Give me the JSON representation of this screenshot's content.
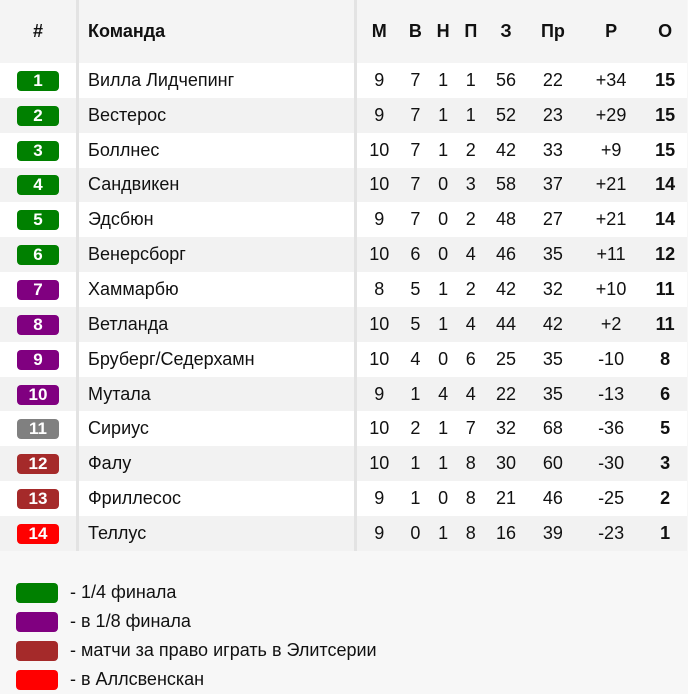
{
  "header": {
    "pos": "#",
    "team": "Команда",
    "cols": [
      "М",
      "В",
      "Н",
      "П",
      "З",
      "Пр",
      "Р",
      "О"
    ]
  },
  "colors": {
    "quarter": "#008000",
    "eighth": "#800080",
    "playoff": "#a52a2a",
    "relegation": "#ff0000",
    "neutral": "#808080"
  },
  "rows": [
    {
      "pos": "1",
      "zone": "quarter",
      "team": "Вилла Лидчепинг",
      "v": [
        "9",
        "7",
        "1",
        "1",
        "56",
        "22",
        "+34",
        "15"
      ]
    },
    {
      "pos": "2",
      "zone": "quarter",
      "team": "Вестерос",
      "v": [
        "9",
        "7",
        "1",
        "1",
        "52",
        "23",
        "+29",
        "15"
      ]
    },
    {
      "pos": "3",
      "zone": "quarter",
      "team": "Боллнес",
      "v": [
        "10",
        "7",
        "1",
        "2",
        "42",
        "33",
        "+9",
        "15"
      ]
    },
    {
      "pos": "4",
      "zone": "quarter",
      "team": "Сандвикен",
      "v": [
        "10",
        "7",
        "0",
        "3",
        "58",
        "37",
        "+21",
        "14"
      ]
    },
    {
      "pos": "5",
      "zone": "quarter",
      "team": "Эдсбюн",
      "v": [
        "9",
        "7",
        "0",
        "2",
        "48",
        "27",
        "+21",
        "14"
      ]
    },
    {
      "pos": "6",
      "zone": "quarter",
      "team": "Венерсборг",
      "v": [
        "10",
        "6",
        "0",
        "4",
        "46",
        "35",
        "+11",
        "12"
      ]
    },
    {
      "pos": "7",
      "zone": "eighth",
      "team": "Хаммарбю",
      "v": [
        "8",
        "5",
        "1",
        "2",
        "42",
        "32",
        "+10",
        "11"
      ]
    },
    {
      "pos": "8",
      "zone": "eighth",
      "team": "Ветланда",
      "v": [
        "10",
        "5",
        "1",
        "4",
        "44",
        "42",
        "+2",
        "11"
      ]
    },
    {
      "pos": "9",
      "zone": "eighth",
      "team": "Бруберг/Седерхамн",
      "v": [
        "10",
        "4",
        "0",
        "6",
        "25",
        "35",
        "-10",
        "8"
      ]
    },
    {
      "pos": "10",
      "zone": "eighth",
      "team": "Мутала",
      "v": [
        "9",
        "1",
        "4",
        "4",
        "22",
        "35",
        "-13",
        "6"
      ]
    },
    {
      "pos": "11",
      "zone": "neutral",
      "team": "Сириус",
      "v": [
        "10",
        "2",
        "1",
        "7",
        "32",
        "68",
        "-36",
        "5"
      ]
    },
    {
      "pos": "12",
      "zone": "playoff",
      "team": "Фалу",
      "v": [
        "10",
        "1",
        "1",
        "8",
        "30",
        "60",
        "-30",
        "3"
      ]
    },
    {
      "pos": "13",
      "zone": "playoff",
      "team": "Фриллесос",
      "v": [
        "9",
        "1",
        "0",
        "8",
        "21",
        "46",
        "-25",
        "2"
      ]
    },
    {
      "pos": "14",
      "zone": "relegation",
      "team": "Теллус",
      "v": [
        "9",
        "0",
        "1",
        "8",
        "16",
        "39",
        "-23",
        "1"
      ]
    }
  ],
  "legend": [
    {
      "zone": "quarter",
      "label": "- 1/4 финала"
    },
    {
      "zone": "eighth",
      "label": "- в 1/8 финала"
    },
    {
      "zone": "playoff",
      "label": "- матчи за право играть в Элитсерии"
    },
    {
      "zone": "relegation",
      "label": "- в Аллсвенскан"
    }
  ]
}
